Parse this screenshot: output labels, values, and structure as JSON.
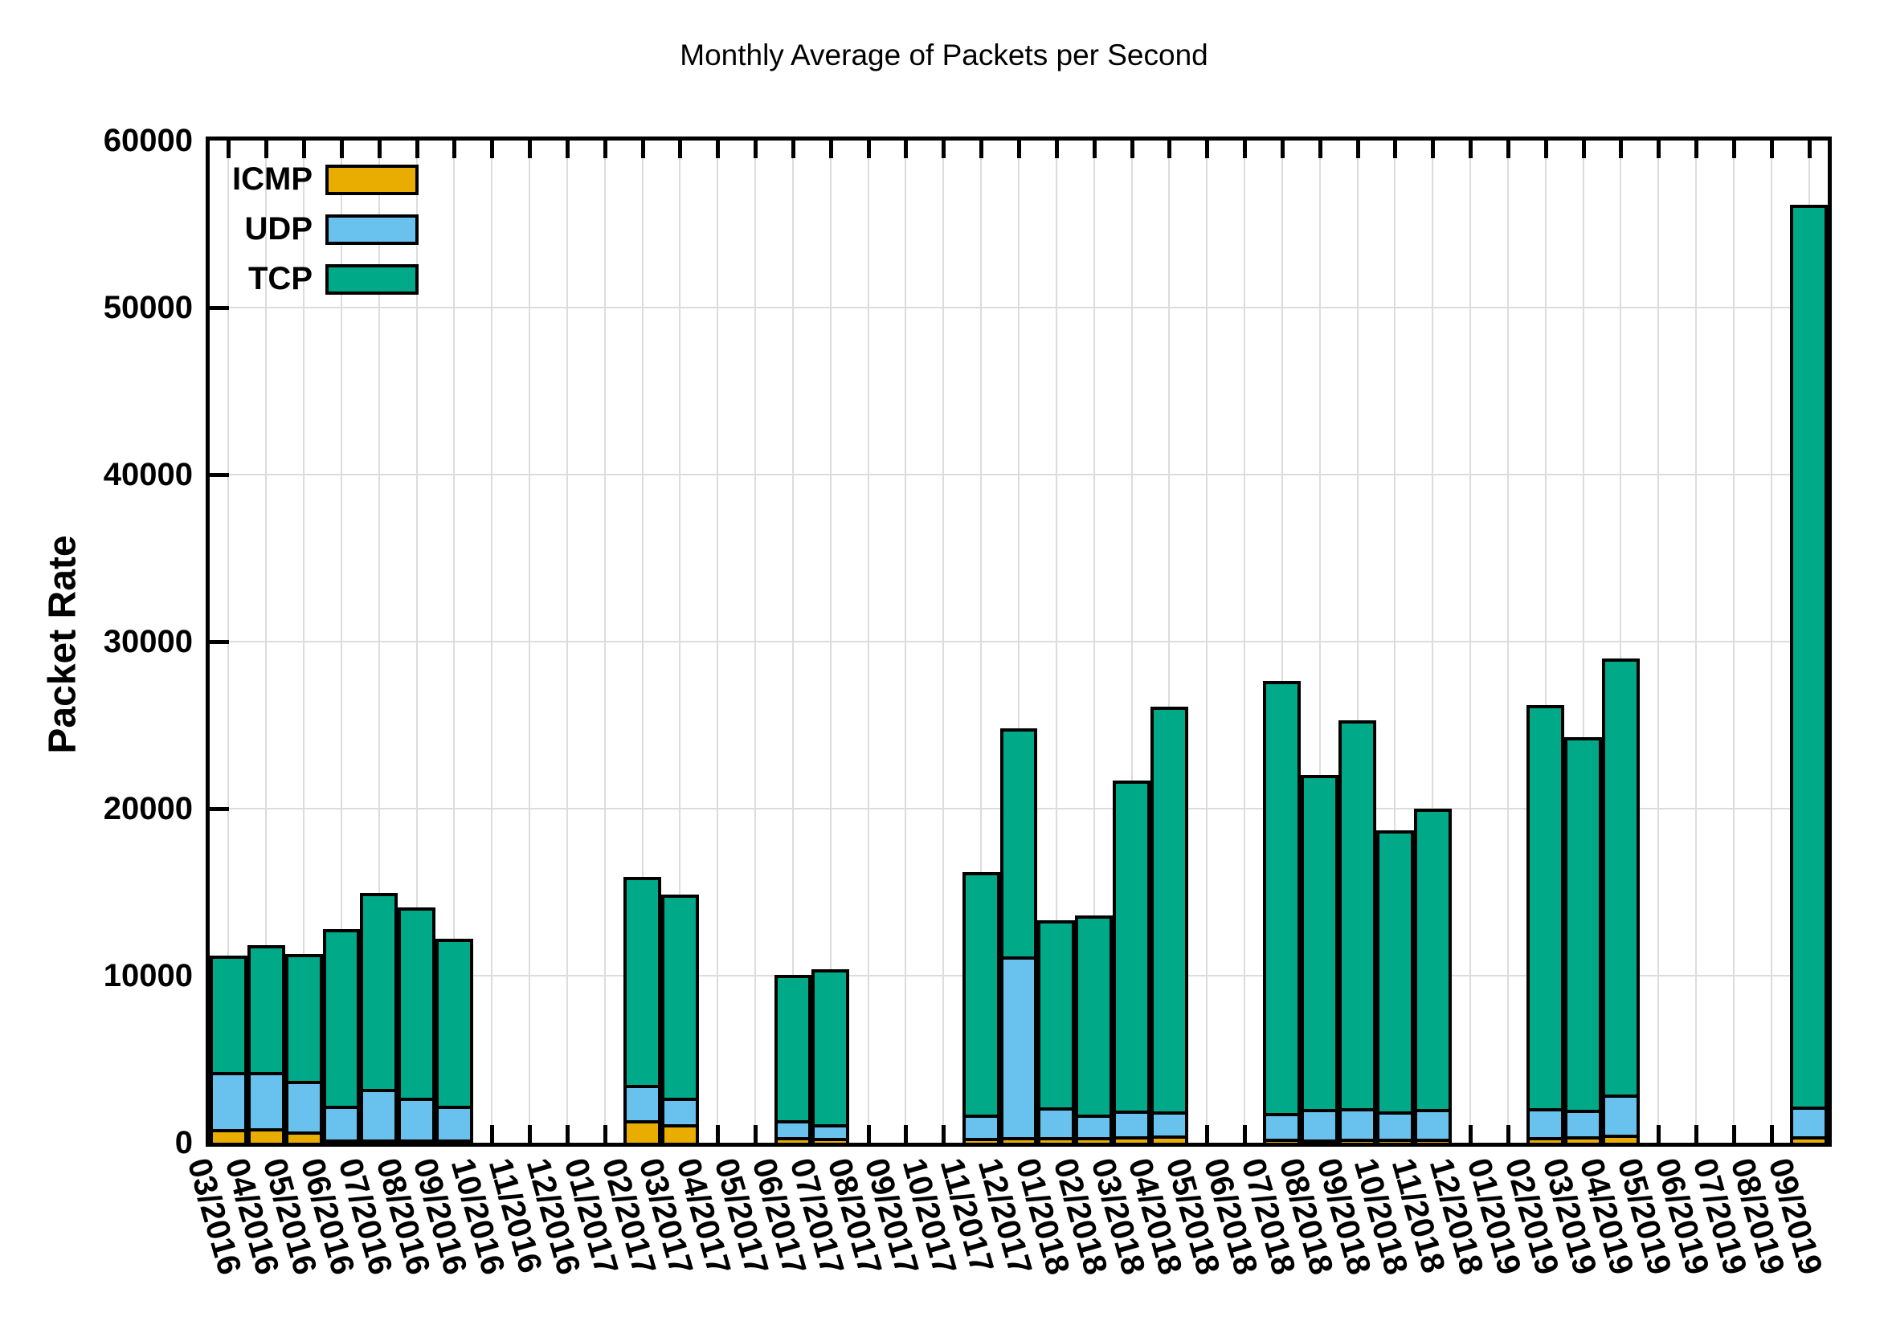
{
  "chart_data": {
    "type": "bar",
    "stacked": true,
    "title": "Monthly Average of Packets per Second",
    "xlabel": "",
    "ylabel": "Packet Rate",
    "ylim": [
      0,
      60000
    ],
    "yticks": [
      0,
      10000,
      20000,
      30000,
      40000,
      50000,
      60000
    ],
    "grid": true,
    "legend_position": "top-left",
    "categories": [
      "03/2016",
      "04/2016",
      "05/2016",
      "06/2016",
      "07/2016",
      "08/2016",
      "09/2016",
      "10/2016",
      "11/2016",
      "12/2016",
      "01/2017",
      "02/2017",
      "03/2017",
      "04/2017",
      "05/2017",
      "06/2017",
      "07/2017",
      "08/2017",
      "09/2017",
      "10/2017",
      "11/2017",
      "12/2017",
      "01/2018",
      "02/2018",
      "03/2018",
      "04/2018",
      "05/2018",
      "06/2018",
      "07/2018",
      "08/2018",
      "09/2018",
      "10/2018",
      "11/2018",
      "12/2018",
      "01/2019",
      "02/2019",
      "03/2019",
      "04/2019",
      "05/2019",
      "06/2019",
      "07/2019",
      "08/2019",
      "09/2019"
    ],
    "series": [
      {
        "name": "ICMP",
        "color": "#E9AC00",
        "values": [
          800,
          860,
          660,
          190,
          125,
          125,
          95,
          0,
          0,
          0,
          0,
          1330,
          1090,
          0,
          0,
          340,
          300,
          0,
          0,
          0,
          300,
          350,
          350,
          350,
          400,
          450,
          0,
          0,
          240,
          200,
          240,
          240,
          240,
          0,
          0,
          350,
          390,
          500,
          0,
          0,
          0,
          0,
          375
        ]
      },
      {
        "name": "UDP",
        "color": "#69C2ED",
        "values": [
          3450,
          3390,
          3060,
          2000,
          3035,
          2485,
          2015,
          0,
          0,
          0,
          0,
          2120,
          1620,
          0,
          0,
          990,
          820,
          0,
          0,
          0,
          1400,
          10820,
          1770,
          1320,
          1540,
          1430,
          0,
          0,
          1560,
          1830,
          1840,
          1640,
          1760,
          0,
          0,
          1710,
          1600,
          2390,
          0,
          0,
          0,
          0,
          1775
        ]
      },
      {
        "name": "TCP",
        "color": "#00A987",
        "values": [
          6950,
          7600,
          7580,
          10610,
          11790,
          11490,
          10090,
          0,
          0,
          0,
          0,
          12450,
          12140,
          0,
          0,
          8720,
          9260,
          0,
          0,
          0,
          14500,
          13660,
          11220,
          11940,
          19760,
          24220,
          0,
          0,
          25850,
          19970,
          23220,
          16820,
          18000,
          0,
          0,
          24140,
          22310,
          26110,
          0,
          0,
          0,
          0,
          54000
        ]
      }
    ],
    "colors": {
      "axis": "#000000",
      "grid": "#DCDCDC",
      "background": "#FFFFFF"
    }
  }
}
